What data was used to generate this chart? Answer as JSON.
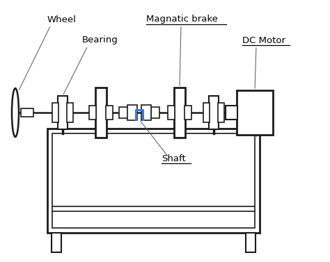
{
  "bg_color": "#ffffff",
  "line_color": "#1a1a1a",
  "blue_color": "#4477cc",
  "gray_color": "#555555",
  "labels": {
    "wheel": "Wheel",
    "bearing": "Bearing",
    "magnetic_brake": "Magnatic brake",
    "dc_motor": "DC Motor",
    "shaft": "Shaft"
  },
  "figsize": [
    4.74,
    3.77
  ],
  "dpi": 100
}
